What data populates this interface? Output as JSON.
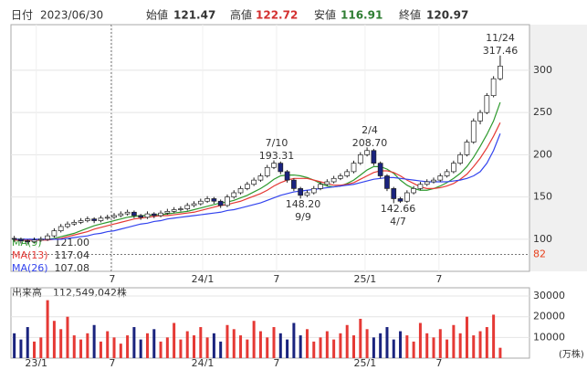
{
  "header": {
    "date_label": "日付",
    "date": "2023/06/30",
    "open_label": "始値",
    "open": 121.47,
    "high_label": "高値",
    "high": 122.72,
    "low_label": "安値",
    "low": 116.91,
    "close_label": "終値",
    "close": 120.97
  },
  "chart_data": [
    {
      "type": "candlestick",
      "up_color": "#ffffff",
      "down_color": "#1a237e",
      "outline": "#222",
      "xlim": [
        -0.5,
        77.4
      ],
      "xticks": [
        {
          "value": 3.3,
          "label": "23/1"
        },
        {
          "value": 14.7,
          "label": "7"
        },
        {
          "value": 28.3,
          "label": "24/1"
        },
        {
          "value": 39.4,
          "label": "7"
        },
        {
          "value": 52.7,
          "label": "25/1"
        },
        {
          "value": 63.8,
          "label": "7"
        }
      ],
      "ylim": [
        62,
        354
      ],
      "yticks": [
        100,
        150,
        200,
        250,
        300
      ],
      "grid": true,
      "price_marker": 82,
      "marker_color": "#e8401c",
      "open": [
        101,
        100,
        98,
        97,
        99,
        100,
        104,
        110,
        115,
        118,
        120,
        122,
        124,
        122,
        125,
        126,
        128,
        130,
        132,
        128,
        126,
        130,
        128,
        131,
        133,
        135,
        136,
        140,
        142,
        145,
        148,
        145,
        140,
        150,
        155,
        160,
        165,
        170,
        175,
        185,
        190,
        180,
        170,
        160,
        152,
        155,
        160,
        165,
        168,
        172,
        175,
        180,
        190,
        200,
        205,
        190,
        175,
        160,
        148,
        145,
        155,
        160,
        165,
        168,
        170,
        175,
        180,
        190,
        200,
        215,
        240,
        250,
        270,
        290
      ],
      "high": [
        104,
        102,
        100,
        102,
        103,
        107,
        113,
        118,
        121,
        123,
        125,
        127,
        126,
        128,
        129,
        131,
        133,
        135,
        134,
        130,
        133,
        132,
        134,
        136,
        138,
        139,
        143,
        145,
        148,
        151,
        150,
        147,
        153,
        158,
        163,
        168,
        173,
        178,
        188,
        193.31,
        192,
        182,
        172,
        162,
        158,
        163,
        168,
        171,
        175,
        178,
        183,
        193,
        203,
        208.7,
        207,
        192,
        177,
        162,
        150,
        158,
        163,
        168,
        171,
        173,
        178,
        183,
        193,
        203,
        218,
        243,
        253,
        273,
        293,
        317.46
      ],
      "low": [
        97,
        95,
        94,
        95,
        97,
        98,
        102,
        108,
        113,
        116,
        118,
        120,
        119,
        120,
        123,
        124,
        126,
        128,
        125,
        123,
        124,
        125,
        126,
        129,
        131,
        133,
        134,
        138,
        140,
        143,
        142,
        137,
        138,
        148,
        153,
        158,
        163,
        168,
        173,
        183,
        177,
        167,
        157,
        148.2,
        150,
        153,
        158,
        163,
        166,
        170,
        173,
        178,
        188,
        198,
        187,
        172,
        157,
        142.66,
        143,
        143,
        153,
        158,
        163,
        166,
        168,
        173,
        178,
        188,
        198,
        213,
        236,
        248,
        268,
        288
      ],
      "close": [
        100,
        98,
        97,
        99,
        100,
        104,
        110,
        115,
        118,
        120,
        122,
        124,
        122,
        125,
        126,
        128,
        130,
        132,
        128,
        126,
        130,
        128,
        131,
        133,
        135,
        136,
        140,
        142,
        145,
        148,
        145,
        140,
        150,
        155,
        160,
        165,
        170,
        175,
        185,
        190,
        180,
        170,
        160,
        152,
        155,
        160,
        165,
        168,
        172,
        175,
        180,
        190,
        200,
        205,
        190,
        175,
        160,
        148,
        145,
        155,
        160,
        165,
        168,
        170,
        175,
        180,
        190,
        200,
        215,
        240,
        250,
        270,
        290,
        305
      ],
      "annotations": [
        {
          "date": "7/10",
          "price": "193.31"
        },
        {
          "date": "9/9",
          "price": "148.20"
        },
        {
          "date": "2/4",
          "price": "208.70"
        },
        {
          "date": "4/7",
          "price": "142.66"
        },
        {
          "date": "11/24",
          "price": "317.46"
        }
      ],
      "series": [
        {
          "name": "MA(9)",
          "legend_value": "121.00",
          "color": "#2e9a2e",
          "values": [
            99,
            99,
            99,
            99,
            99,
            100,
            101,
            103,
            105,
            107,
            110,
            113,
            116,
            118,
            120,
            122,
            124,
            126,
            127,
            128,
            128,
            129,
            129,
            130,
            131,
            132,
            133,
            135,
            137,
            139,
            141,
            143,
            144,
            146,
            149,
            152,
            156,
            160,
            165,
            171,
            175,
            176,
            176,
            175,
            173,
            170,
            166,
            163,
            162,
            163,
            166,
            170,
            176,
            182,
            186,
            186,
            183,
            178,
            170,
            164,
            160,
            158,
            158,
            160,
            163,
            167,
            172,
            178,
            186,
            197,
            210,
            224,
            240,
            262
          ]
        },
        {
          "name": "MA(13)",
          "legend_value": "117.04",
          "color": "#e53935",
          "values": [
            99,
            99,
            99,
            99,
            99,
            99,
            100,
            101,
            103,
            105,
            107,
            109,
            112,
            114,
            116,
            118,
            120,
            122,
            124,
            125,
            126,
            127,
            128,
            128,
            129,
            130,
            131,
            132,
            134,
            136,
            138,
            140,
            141,
            143,
            145,
            148,
            151,
            154,
            158,
            163,
            167,
            170,
            172,
            172,
            172,
            170,
            168,
            166,
            164,
            164,
            165,
            167,
            171,
            175,
            179,
            181,
            181,
            179,
            175,
            170,
            166,
            162,
            160,
            160,
            161,
            163,
            166,
            171,
            177,
            186,
            196,
            208,
            222,
            238
          ]
        },
        {
          "name": "MA(26)",
          "legend_value": "107.08",
          "color": "#3344ee",
          "values": [
            100,
            100,
            100,
            100,
            100,
            100,
            100,
            100,
            101,
            102,
            103,
            104,
            106,
            107,
            109,
            110,
            112,
            114,
            116,
            118,
            119,
            121,
            122,
            124,
            125,
            126,
            127,
            128,
            129,
            130,
            131,
            132,
            134,
            135,
            137,
            139,
            141,
            143,
            146,
            149,
            152,
            154,
            156,
            157,
            158,
            159,
            160,
            161,
            162,
            163,
            164,
            165,
            167,
            169,
            171,
            172,
            173,
            173,
            172,
            171,
            170,
            169,
            168,
            168,
            168,
            168,
            169,
            170,
            172,
            175,
            180,
            190,
            205,
            225
          ]
        }
      ]
    },
    {
      "type": "volume",
      "title": "出来高",
      "total": "112,549,042株",
      "unit": "(万株)",
      "ylim": [
        0,
        34000
      ],
      "yticks": [
        10000,
        20000,
        30000
      ],
      "up_color": "#e53935",
      "down_color": "#1a237e",
      "values": [
        12000,
        9000,
        15000,
        8000,
        10000,
        28000,
        18000,
        14000,
        20000,
        11000,
        9000,
        12000,
        16000,
        8000,
        13000,
        10000,
        7000,
        11000,
        15000,
        9000,
        12000,
        14000,
        8000,
        10000,
        17000,
        9000,
        13000,
        11000,
        15000,
        10000,
        12000,
        8000,
        16000,
        14000,
        11000,
        9000,
        18000,
        13000,
        10000,
        15000,
        12000,
        9000,
        17000,
        11000,
        14000,
        8000,
        10000,
        13000,
        9000,
        12000,
        16000,
        11000,
        19000,
        14000,
        10000,
        12000,
        15000,
        9000,
        13000,
        11000,
        8000,
        17000,
        12000,
        10000,
        14000,
        9000,
        16000,
        12000,
        20000,
        11000,
        13000,
        15000,
        21000,
        5000
      ]
    }
  ]
}
